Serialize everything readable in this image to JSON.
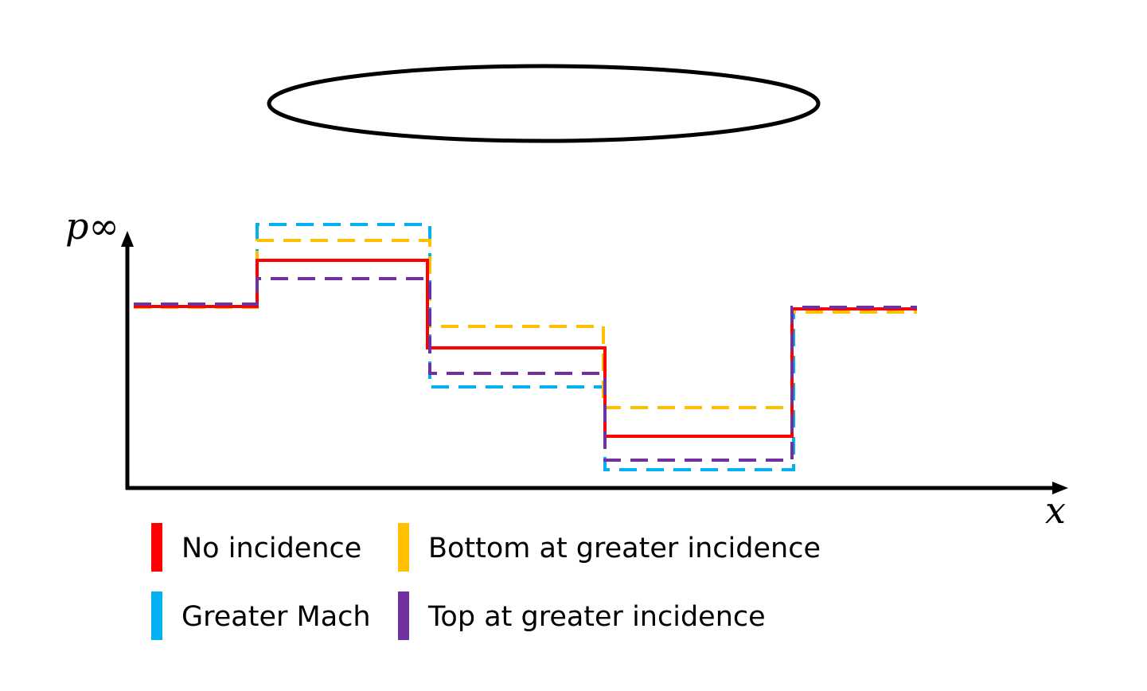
{
  "axes": {
    "y_label": "p∞",
    "x_label": "x"
  },
  "legend": [
    {
      "label": "No incidence",
      "color": "#ff0000"
    },
    {
      "label": "Bottom at greater incidence",
      "color": "#ffc000"
    },
    {
      "label": "Greater Mach",
      "color": "#00b0f0"
    },
    {
      "label": "Top at greater incidence",
      "color": "#7030a0"
    }
  ]
}
